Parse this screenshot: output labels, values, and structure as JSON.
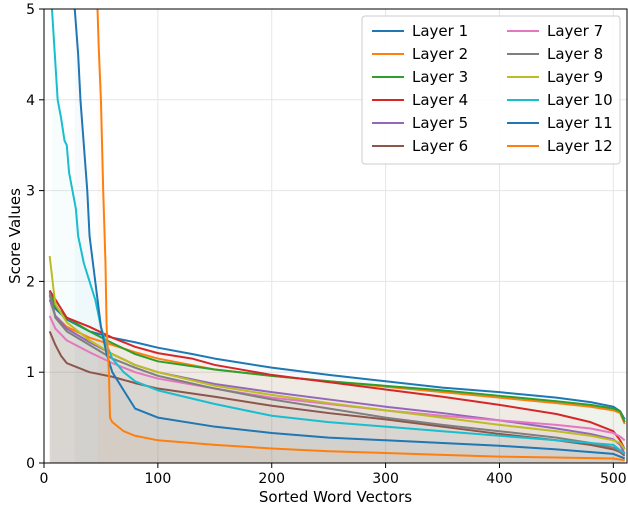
{
  "chart_data": {
    "type": "line",
    "title": "",
    "xlabel": "Sorted Word Vectors",
    "ylabel": "Score Values",
    "xlim": [
      0,
      512
    ],
    "ylim": [
      0,
      5
    ],
    "xticks": [
      0,
      100,
      200,
      300,
      400,
      500
    ],
    "yticks": [
      0,
      1,
      2,
      3,
      4,
      5
    ],
    "grid": true,
    "legend_position": "top-right",
    "legend_columns": 2,
    "series": [
      {
        "name": "Layer 1",
        "color": "#1f77b4",
        "points": [
          [
            5,
            1.85
          ],
          [
            10,
            1.7
          ],
          [
            20,
            1.58
          ],
          [
            40,
            1.45
          ],
          [
            60,
            1.38
          ],
          [
            80,
            1.33
          ],
          [
            100,
            1.27
          ],
          [
            130,
            1.2
          ],
          [
            150,
            1.15
          ],
          [
            200,
            1.05
          ],
          [
            250,
            0.97
          ],
          [
            300,
            0.9
          ],
          [
            350,
            0.83
          ],
          [
            400,
            0.78
          ],
          [
            450,
            0.72
          ],
          [
            480,
            0.67
          ],
          [
            500,
            0.62
          ],
          [
            506,
            0.57
          ],
          [
            510,
            0.48
          ]
        ]
      },
      {
        "name": "Layer 2",
        "color": "#ff7f0e",
        "points": [
          [
            5,
            1.84
          ],
          [
            10,
            1.62
          ],
          [
            20,
            1.5
          ],
          [
            40,
            1.38
          ],
          [
            60,
            1.3
          ],
          [
            80,
            1.22
          ],
          [
            100,
            1.15
          ],
          [
            150,
            1.03
          ],
          [
            200,
            0.96
          ],
          [
            250,
            0.9
          ],
          [
            300,
            0.84
          ],
          [
            350,
            0.78
          ],
          [
            400,
            0.72
          ],
          [
            450,
            0.66
          ],
          [
            480,
            0.62
          ],
          [
            500,
            0.58
          ],
          [
            506,
            0.55
          ],
          [
            510,
            0.43
          ]
        ]
      },
      {
        "name": "Layer 3",
        "color": "#2ca02c",
        "points": [
          [
            5,
            1.9
          ],
          [
            10,
            1.72
          ],
          [
            20,
            1.6
          ],
          [
            40,
            1.45
          ],
          [
            60,
            1.32
          ],
          [
            80,
            1.2
          ],
          [
            100,
            1.12
          ],
          [
            150,
            1.03
          ],
          [
            200,
            0.96
          ],
          [
            250,
            0.9
          ],
          [
            300,
            0.85
          ],
          [
            350,
            0.8
          ],
          [
            400,
            0.74
          ],
          [
            450,
            0.68
          ],
          [
            480,
            0.64
          ],
          [
            500,
            0.6
          ],
          [
            506,
            0.57
          ],
          [
            510,
            0.45
          ]
        ]
      },
      {
        "name": "Layer 4",
        "color": "#d62728",
        "points": [
          [
            5,
            1.9
          ],
          [
            10,
            1.8
          ],
          [
            20,
            1.6
          ],
          [
            40,
            1.5
          ],
          [
            60,
            1.38
          ],
          [
            80,
            1.28
          ],
          [
            100,
            1.21
          ],
          [
            130,
            1.15
          ],
          [
            150,
            1.08
          ],
          [
            200,
            0.97
          ],
          [
            250,
            0.89
          ],
          [
            300,
            0.81
          ],
          [
            350,
            0.73
          ],
          [
            400,
            0.64
          ],
          [
            450,
            0.54
          ],
          [
            480,
            0.45
          ],
          [
            500,
            0.35
          ],
          [
            506,
            0.25
          ],
          [
            510,
            0.15
          ]
        ]
      },
      {
        "name": "Layer 5",
        "color": "#9467bd",
        "points": [
          [
            5,
            1.8
          ],
          [
            10,
            1.62
          ],
          [
            20,
            1.48
          ],
          [
            40,
            1.33
          ],
          [
            60,
            1.2
          ],
          [
            80,
            1.08
          ],
          [
            100,
            1.0
          ],
          [
            150,
            0.87
          ],
          [
            200,
            0.78
          ],
          [
            250,
            0.7
          ],
          [
            300,
            0.62
          ],
          [
            350,
            0.55
          ],
          [
            400,
            0.47
          ],
          [
            450,
            0.38
          ],
          [
            480,
            0.32
          ],
          [
            500,
            0.26
          ],
          [
            506,
            0.2
          ],
          [
            510,
            0.1
          ]
        ]
      },
      {
        "name": "Layer 6",
        "color": "#8c564b",
        "points": [
          [
            5,
            1.45
          ],
          [
            10,
            1.3
          ],
          [
            15,
            1.18
          ],
          [
            20,
            1.1
          ],
          [
            30,
            1.05
          ],
          [
            40,
            1.0
          ],
          [
            60,
            0.95
          ],
          [
            80,
            0.88
          ],
          [
            100,
            0.82
          ],
          [
            150,
            0.73
          ],
          [
            200,
            0.63
          ],
          [
            250,
            0.55
          ],
          [
            300,
            0.48
          ],
          [
            350,
            0.4
          ],
          [
            400,
            0.32
          ],
          [
            450,
            0.25
          ],
          [
            480,
            0.2
          ],
          [
            500,
            0.15
          ],
          [
            506,
            0.12
          ],
          [
            510,
            0.08
          ]
        ]
      },
      {
        "name": "Layer 7",
        "color": "#e377c2",
        "points": [
          [
            5,
            1.62
          ],
          [
            10,
            1.48
          ],
          [
            20,
            1.35
          ],
          [
            40,
            1.22
          ],
          [
            60,
            1.1
          ],
          [
            80,
            1.0
          ],
          [
            100,
            0.93
          ],
          [
            150,
            0.82
          ],
          [
            200,
            0.72
          ],
          [
            250,
            0.65
          ],
          [
            300,
            0.58
          ],
          [
            350,
            0.52
          ],
          [
            400,
            0.47
          ],
          [
            450,
            0.42
          ],
          [
            480,
            0.38
          ],
          [
            500,
            0.33
          ],
          [
            506,
            0.29
          ],
          [
            510,
            0.25
          ]
        ]
      },
      {
        "name": "Layer 8",
        "color": "#7f7f7f",
        "points": [
          [
            5,
            1.88
          ],
          [
            10,
            1.6
          ],
          [
            20,
            1.45
          ],
          [
            40,
            1.3
          ],
          [
            60,
            1.15
          ],
          [
            80,
            1.05
          ],
          [
            100,
            0.96
          ],
          [
            150,
            0.82
          ],
          [
            200,
            0.7
          ],
          [
            250,
            0.6
          ],
          [
            300,
            0.5
          ],
          [
            350,
            0.42
          ],
          [
            400,
            0.35
          ],
          [
            450,
            0.28
          ],
          [
            480,
            0.22
          ],
          [
            500,
            0.17
          ],
          [
            506,
            0.13
          ],
          [
            510,
            0.1
          ]
        ]
      },
      {
        "name": "Layer 9",
        "color": "#bcbd22",
        "points": [
          [
            5,
            2.28
          ],
          [
            8,
            1.95
          ],
          [
            10,
            1.75
          ],
          [
            20,
            1.55
          ],
          [
            40,
            1.35
          ],
          [
            60,
            1.2
          ],
          [
            80,
            1.08
          ],
          [
            100,
            1.0
          ],
          [
            150,
            0.85
          ],
          [
            200,
            0.75
          ],
          [
            250,
            0.66
          ],
          [
            300,
            0.58
          ],
          [
            350,
            0.5
          ],
          [
            400,
            0.42
          ],
          [
            450,
            0.35
          ],
          [
            480,
            0.3
          ],
          [
            500,
            0.25
          ],
          [
            506,
            0.22
          ],
          [
            510,
            0.15
          ]
        ]
      },
      {
        "name": "Layer 10",
        "color": "#17becf",
        "points": [
          [
            7,
            5.0
          ],
          [
            9,
            4.6
          ],
          [
            12,
            4.0
          ],
          [
            15,
            3.8
          ],
          [
            18,
            3.55
          ],
          [
            20,
            3.5
          ],
          [
            22,
            3.2
          ],
          [
            25,
            3.0
          ],
          [
            28,
            2.8
          ],
          [
            30,
            2.5
          ],
          [
            35,
            2.2
          ],
          [
            40,
            2.0
          ],
          [
            45,
            1.8
          ],
          [
            50,
            1.5
          ],
          [
            55,
            1.3
          ],
          [
            60,
            1.15
          ],
          [
            70,
            1.0
          ],
          [
            80,
            0.9
          ],
          [
            100,
            0.8
          ],
          [
            150,
            0.65
          ],
          [
            200,
            0.52
          ],
          [
            250,
            0.45
          ],
          [
            300,
            0.4
          ],
          [
            350,
            0.35
          ],
          [
            400,
            0.3
          ],
          [
            450,
            0.25
          ],
          [
            500,
            0.2
          ],
          [
            510,
            0.1
          ]
        ]
      },
      {
        "name": "Layer 11",
        "color": "#1f77b4",
        "points": [
          [
            27,
            5.0
          ],
          [
            30,
            4.5
          ],
          [
            32,
            4.0
          ],
          [
            35,
            3.5
          ],
          [
            38,
            3.0
          ],
          [
            40,
            2.5
          ],
          [
            45,
            2.0
          ],
          [
            50,
            1.5
          ],
          [
            55,
            1.2
          ],
          [
            60,
            1.0
          ],
          [
            70,
            0.8
          ],
          [
            80,
            0.6
          ],
          [
            100,
            0.5
          ],
          [
            150,
            0.4
          ],
          [
            200,
            0.33
          ],
          [
            250,
            0.28
          ],
          [
            300,
            0.25
          ],
          [
            350,
            0.22
          ],
          [
            400,
            0.19
          ],
          [
            450,
            0.15
          ],
          [
            500,
            0.1
          ],
          [
            510,
            0.05
          ]
        ]
      },
      {
        "name": "Layer 12",
        "color": "#ff7f0e",
        "points": [
          [
            47,
            5.0
          ],
          [
            48,
            4.6
          ],
          [
            50,
            4.0
          ],
          [
            52,
            3.0
          ],
          [
            54,
            2.2
          ],
          [
            55,
            1.5
          ],
          [
            57,
            1.0
          ],
          [
            58,
            0.5
          ],
          [
            60,
            0.45
          ],
          [
            70,
            0.35
          ],
          [
            80,
            0.3
          ],
          [
            100,
            0.25
          ],
          [
            150,
            0.2
          ],
          [
            200,
            0.16
          ],
          [
            250,
            0.13
          ],
          [
            300,
            0.11
          ],
          [
            350,
            0.09
          ],
          [
            400,
            0.07
          ],
          [
            450,
            0.06
          ],
          [
            500,
            0.05
          ],
          [
            510,
            0.03
          ]
        ]
      }
    ]
  }
}
